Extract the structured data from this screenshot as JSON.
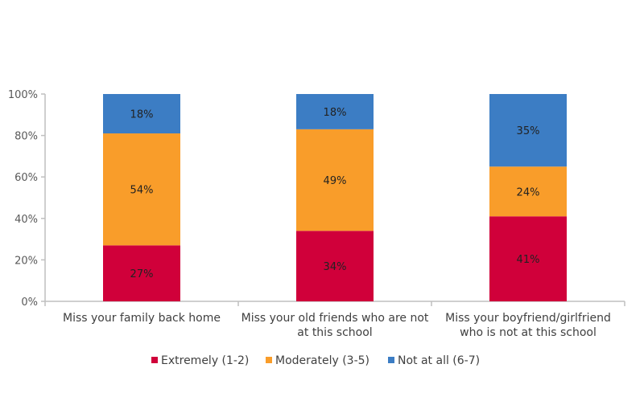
{
  "chart_data": {
    "type": "bar",
    "stacked": true,
    "categories": [
      [
        "Miss your family back home"
      ],
      [
        "Miss your old friends who are not",
        "at this school"
      ],
      [
        "Miss your boyfriend/girlfriend",
        "who is not at this school"
      ]
    ],
    "series": [
      {
        "name": "Extremely (1-2)",
        "color": "#D0003A",
        "values": [
          27,
          34,
          41
        ]
      },
      {
        "name": "Moderately (3-5)",
        "color": "#F99D2A",
        "values": [
          54,
          49,
          24
        ]
      },
      {
        "name": "Not at all (6-7)",
        "color": "#3C7DC4",
        "values": [
          18,
          18,
          35
        ]
      }
    ],
    "data_labels": [
      [
        "27%",
        "34%",
        "41%"
      ],
      [
        "54%",
        "49%",
        "24%"
      ],
      [
        "18%",
        "18%",
        "35%"
      ]
    ],
    "yticks": [
      "0%",
      "20%",
      "40%",
      "60%",
      "80%",
      "100%"
    ],
    "ylim": [
      0,
      100
    ],
    "grid": false,
    "legend_position": "bottom"
  }
}
